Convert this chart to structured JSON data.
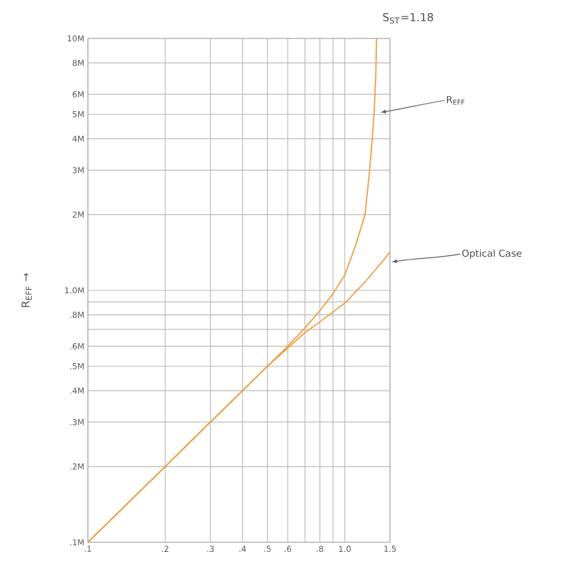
{
  "chart_data": {
    "type": "line",
    "ylabel": "R$_{EFF}$ →",
    "annotations": [
      "S$_{ST}$=1.18"
    ],
    "log": "xy",
    "grid": true,
    "legend": false,
    "marker": "none",
    "line_style": "solid",
    "xlim": [
      0.1,
      1.5
    ],
    "ylim": [
      0.1,
      10
    ],
    "xticks": [
      {
        "value": 0.1,
        "label": ".1"
      },
      {
        "value": 0.2,
        "label": ".2"
      },
      {
        "value": 0.3,
        "label": ".3"
      },
      {
        "value": 0.4,
        "label": ".4"
      },
      {
        "value": 0.5,
        "label": ".5"
      },
      {
        "value": 0.6,
        "label": ".6"
      },
      {
        "value": 0.7,
        "label": null
      },
      {
        "value": 0.8,
        "label": ".8"
      },
      {
        "value": 0.9,
        "label": null
      },
      {
        "value": 1.0,
        "label": "1.0"
      },
      {
        "value": 1.5,
        "label": "1.5"
      }
    ],
    "yticks": [
      {
        "value": 0.1,
        "label": ".1M"
      },
      {
        "value": 0.2,
        "label": ".2M"
      },
      {
        "value": 0.3,
        "label": ".3M"
      },
      {
        "value": 0.4,
        "label": ".4M"
      },
      {
        "value": 0.5,
        "label": ".5M"
      },
      {
        "value": 0.6,
        "label": ".6M"
      },
      {
        "value": 0.7,
        "label": null
      },
      {
        "value": 0.8,
        "label": ".8M"
      },
      {
        "value": 0.9,
        "label": null
      },
      {
        "value": 1.0,
        "label": "1.0M"
      },
      {
        "value": 2,
        "label": "2M"
      },
      {
        "value": 3,
        "label": "3M"
      },
      {
        "value": 4,
        "label": "4M"
      },
      {
        "value": 5,
        "label": "5M"
      },
      {
        "value": 6,
        "label": "6M"
      },
      {
        "value": 8,
        "label": "8M"
      },
      {
        "value": 10,
        "label": "10M"
      }
    ],
    "series": [
      {
        "name": "R$_{EFF}$",
        "color": "#f39a3c",
        "x": [
          0.1,
          0.2,
          0.3,
          0.4,
          0.5,
          0.6,
          0.7,
          0.8,
          0.9,
          1.0,
          1.1,
          1.2,
          1.25,
          1.28,
          1.3,
          1.32,
          1.33
        ],
        "values": [
          0.1,
          0.2,
          0.3,
          0.4,
          0.5,
          0.6,
          0.71,
          0.83,
          0.97,
          1.15,
          1.5,
          2.0,
          3.0,
          4.0,
          5.0,
          7.0,
          10
        ]
      },
      {
        "name": "Optical Case",
        "color": "#f39a3c",
        "x": [
          0.1,
          0.2,
          0.3,
          0.4,
          0.5,
          0.6,
          0.7,
          0.8,
          0.9,
          1.0,
          1.2,
          1.4,
          1.5
        ],
        "values": [
          0.1,
          0.2,
          0.3,
          0.4,
          0.5,
          0.59,
          0.68,
          0.75,
          0.82,
          0.89,
          1.08,
          1.3,
          1.42
        ]
      }
    ]
  }
}
